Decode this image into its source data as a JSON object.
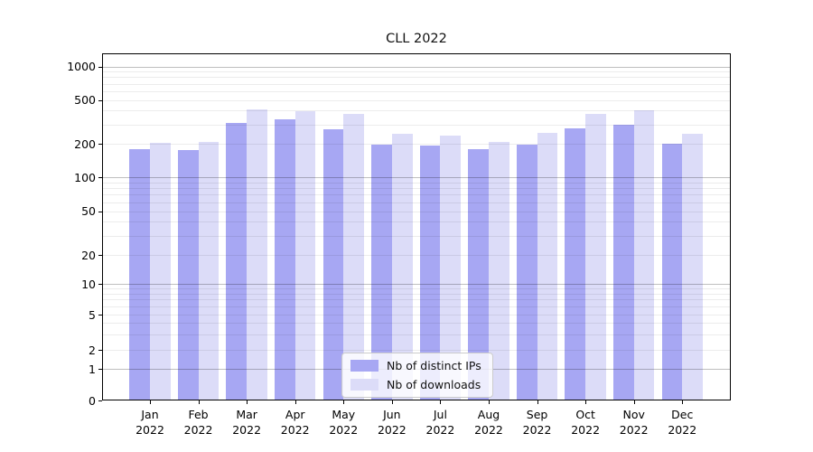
{
  "title": "CLL 2022",
  "y_axis": {
    "tick_labels": [
      "1000",
      "500",
      "200",
      "100",
      "50",
      "20",
      "10",
      "5",
      "2",
      "1",
      "0"
    ],
    "tick_values": [
      1000,
      500,
      200,
      100,
      50,
      20,
      10,
      5,
      2,
      1,
      0
    ]
  },
  "x_axis": {
    "months": [
      "Jan",
      "Feb",
      "Mar",
      "Apr",
      "May",
      "Jun",
      "Jul",
      "Aug",
      "Sep",
      "Oct",
      "Nov",
      "Dec"
    ],
    "year": "2022"
  },
  "legend": {
    "items": [
      {
        "label": "Nb of distinct IPs",
        "color": "#a7a7f3"
      },
      {
        "label": "Nb of downloads",
        "color": "#dcdcf8"
      }
    ]
  },
  "chart_data": {
    "type": "bar",
    "title": "CLL 2022",
    "categories": [
      "Jan 2022",
      "Feb 2022",
      "Mar 2022",
      "Apr 2022",
      "May 2022",
      "Jun 2022",
      "Jul 2022",
      "Aug 2022",
      "Sep 2022",
      "Oct 2022",
      "Nov 2022",
      "Dec 2022"
    ],
    "series": [
      {
        "name": "Nb of distinct IPs",
        "color": "#a7a7f3",
        "values": [
          176,
          172,
          303,
          330,
          265,
          191,
          189,
          176,
          191,
          270,
          292,
          195
        ]
      },
      {
        "name": "Nb of downloads",
        "color": "#dcdcf8",
        "values": [
          199,
          202,
          400,
          390,
          370,
          241,
          231,
          204,
          246,
          370,
          395,
          241
        ]
      }
    ],
    "yscale": "symlog",
    "yticks": [
      0,
      1,
      2,
      5,
      10,
      20,
      50,
      100,
      200,
      500,
      1000
    ],
    "ylim": [
      0,
      1300
    ],
    "grid": "on",
    "legend_position": "lower center"
  }
}
